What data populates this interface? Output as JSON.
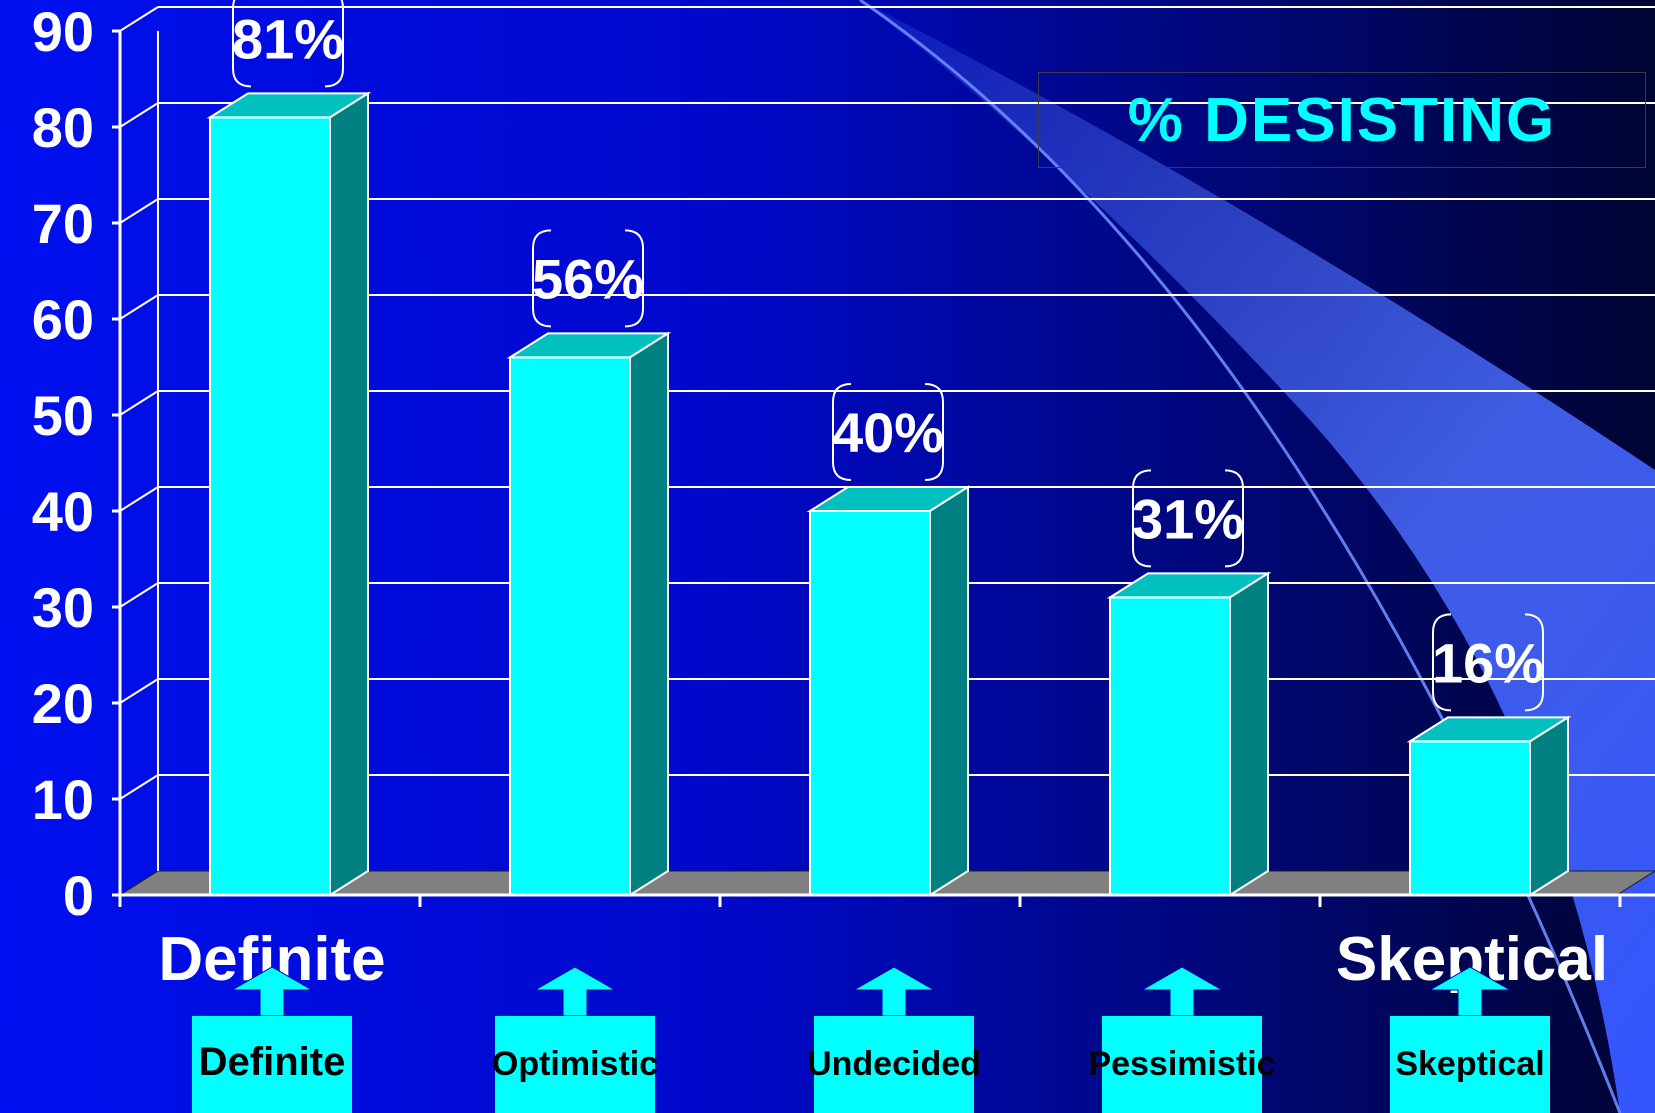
{
  "chart_data": {
    "type": "bar",
    "title": "% DESISTING",
    "categories": [
      "Definite",
      "Optimistic",
      "Undecided",
      "Pessimistic",
      "Skeptical"
    ],
    "values": [
      81,
      56,
      40,
      31,
      16
    ],
    "data_labels": [
      "81%",
      "56%",
      "40%",
      "31%",
      "16%"
    ],
    "ylim": [
      0,
      90
    ],
    "yticks": [
      "0",
      "10",
      "20",
      "30",
      "40",
      "50",
      "60",
      "70",
      "80",
      "90"
    ],
    "scale_end_labels": [
      "Definite",
      "Skeptical"
    ],
    "grid": true,
    "style": "3d",
    "colors": {
      "bar_front": "#00ffff",
      "bar_top": "#00c0c0",
      "bar_side": "#008080",
      "floor": "#808080",
      "grid": "#ffffff",
      "title": "#00ffff"
    }
  }
}
